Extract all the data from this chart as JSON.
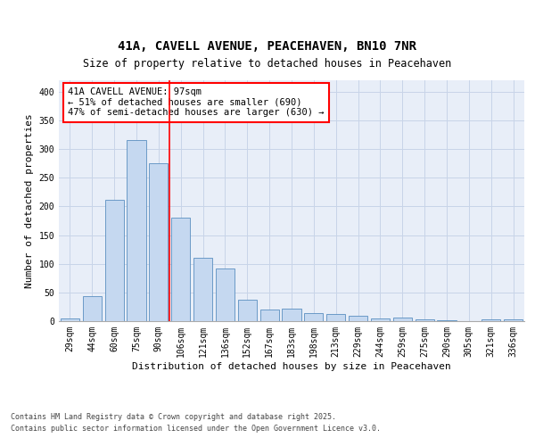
{
  "title_line1": "41A, CAVELL AVENUE, PEACEHAVEN, BN10 7NR",
  "title_line2": "Size of property relative to detached houses in Peacehaven",
  "xlabel": "Distribution of detached houses by size in Peacehaven",
  "ylabel": "Number of detached properties",
  "categories": [
    "29sqm",
    "44sqm",
    "60sqm",
    "75sqm",
    "90sqm",
    "106sqm",
    "121sqm",
    "136sqm",
    "152sqm",
    "167sqm",
    "183sqm",
    "198sqm",
    "213sqm",
    "229sqm",
    "244sqm",
    "259sqm",
    "275sqm",
    "290sqm",
    "305sqm",
    "321sqm",
    "336sqm"
  ],
  "values": [
    5,
    44,
    212,
    315,
    275,
    180,
    110,
    92,
    38,
    20,
    22,
    14,
    13,
    10,
    5,
    6,
    3,
    2,
    0,
    3,
    3
  ],
  "bar_color": "#c5d8f0",
  "bar_edge_color": "#5a8fc0",
  "annotation_text": "41A CAVELL AVENUE: 97sqm\n← 51% of detached houses are smaller (690)\n47% of semi-detached houses are larger (630) →",
  "annotation_box_color": "white",
  "annotation_box_edge_color": "red",
  "vline_color": "red",
  "ylim": [
    0,
    420
  ],
  "yticks": [
    0,
    50,
    100,
    150,
    200,
    250,
    300,
    350,
    400
  ],
  "grid_color": "#c8d4e8",
  "background_color": "#e8eef8",
  "footer_line1": "Contains HM Land Registry data © Crown copyright and database right 2025.",
  "footer_line2": "Contains public sector information licensed under the Open Government Licence v3.0.",
  "title_fontsize": 10,
  "subtitle_fontsize": 8.5,
  "axis_label_fontsize": 8,
  "tick_fontsize": 7,
  "annotation_fontsize": 7.5,
  "footer_fontsize": 6
}
